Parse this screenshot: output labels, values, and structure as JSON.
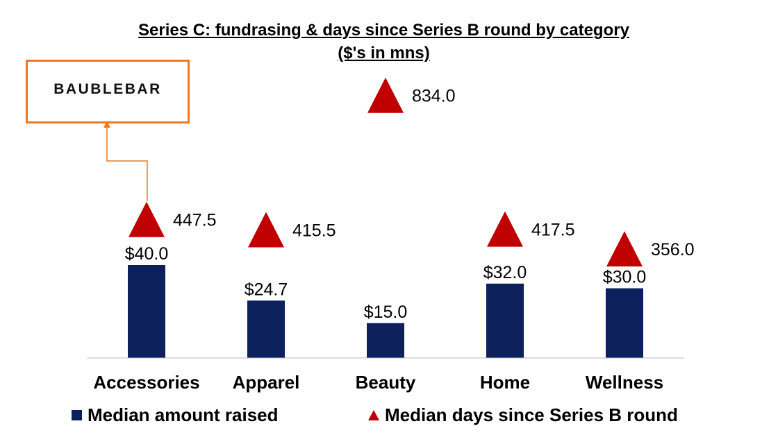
{
  "chart_data": {
    "type": "bar",
    "title": "Series C: fundrasing & days since Series B round by category",
    "subtitle": "($'s in mns)",
    "categories": [
      "Accessories",
      "Apparel",
      "Beauty",
      "Home",
      "Wellness"
    ],
    "series": [
      {
        "name": "Median amount raised",
        "type": "bar",
        "values": [
          40.0,
          24.7,
          15.0,
          32.0,
          30.0
        ],
        "labels": [
          "$40.0",
          "$24.7",
          "$15.0",
          "$32.0",
          "$30.0"
        ],
        "color": "#0C215C"
      },
      {
        "name": "Median days since Series B round",
        "type": "marker-triangle",
        "axis": "secondary",
        "values": [
          447.5,
          415.5,
          834.0,
          417.5,
          356.0
        ],
        "labels": [
          "447.5",
          "415.5",
          "834.0",
          "417.5",
          "356.0"
        ],
        "color": "#C00000"
      }
    ],
    "legend_position": "bottom",
    "grid": false,
    "callout": {
      "category": "Accessories",
      "logo_text": "BAUBLEBAR",
      "color": "#F07820"
    }
  }
}
